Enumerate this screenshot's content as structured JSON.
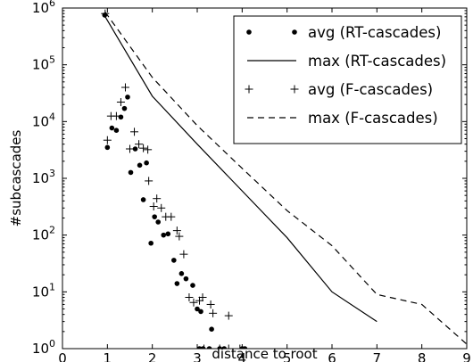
{
  "chart_data": {
    "type": "scatter",
    "xlabel": "distance to root",
    "ylabel": "#subcascades",
    "xlim": [
      0,
      9
    ],
    "ylim_exponent": [
      0,
      6
    ],
    "yscale": "log",
    "grid": false,
    "legend_position": "top-right",
    "x_ticks": [
      "0",
      "1",
      "2",
      "3",
      "4",
      "5",
      "6",
      "7",
      "8",
      "9"
    ],
    "y_ticks": [
      {
        "base": "10",
        "exp": "0"
      },
      {
        "base": "10",
        "exp": "1"
      },
      {
        "base": "10",
        "exp": "2"
      },
      {
        "base": "10",
        "exp": "3"
      },
      {
        "base": "10",
        "exp": "4"
      },
      {
        "base": "10",
        "exp": "5"
      },
      {
        "base": "10",
        "exp": "6"
      }
    ],
    "series": [
      {
        "name": "avg (RT-cascades)",
        "marker": "dot",
        "points": [
          [
            0.94,
            750000
          ],
          [
            1.0,
            3500
          ],
          [
            1.1,
            7700
          ],
          [
            1.2,
            7000
          ],
          [
            1.3,
            12000
          ],
          [
            1.38,
            17000
          ],
          [
            1.45,
            27000
          ],
          [
            1.52,
            1270
          ],
          [
            1.62,
            3300
          ],
          [
            1.72,
            1700
          ],
          [
            1.87,
            1870
          ],
          [
            1.8,
            420
          ],
          [
            1.97,
            72
          ],
          [
            2.05,
            210
          ],
          [
            2.13,
            170
          ],
          [
            2.25,
            100
          ],
          [
            2.35,
            105
          ],
          [
            2.48,
            36
          ],
          [
            2.55,
            14
          ],
          [
            2.65,
            21
          ],
          [
            2.75,
            17
          ],
          [
            2.9,
            13
          ],
          [
            3.0,
            5
          ],
          [
            3.08,
            4.5
          ],
          [
            3.32,
            2.2
          ],
          [
            3.05,
            1.0
          ],
          [
            3.13,
            1.0
          ],
          [
            3.27,
            1.0
          ],
          [
            3.5,
            1.0
          ],
          [
            3.6,
            1.0
          ],
          [
            4.0,
            1.0
          ],
          [
            4.06,
            1.0
          ]
        ]
      },
      {
        "name": "max (RT-cascades)",
        "line": "solid",
        "points": [
          [
            0.93,
            750000
          ],
          [
            2.0,
            28000
          ],
          [
            3.0,
            4000
          ],
          [
            4.0,
            600
          ],
          [
            5.0,
            90
          ],
          [
            6.0,
            10
          ],
          [
            7.0,
            3
          ]
        ]
      },
      {
        "name": "avg (F-cascades)",
        "marker": "plus",
        "points": [
          [
            0.95,
            800000
          ],
          [
            1.0,
            4700
          ],
          [
            1.08,
            12500
          ],
          [
            1.2,
            12500
          ],
          [
            1.3,
            22000
          ],
          [
            1.4,
            40000
          ],
          [
            1.5,
            3300
          ],
          [
            1.6,
            6600
          ],
          [
            1.7,
            4000
          ],
          [
            1.8,
            3400
          ],
          [
            1.9,
            3200
          ],
          [
            1.92,
            900
          ],
          [
            2.03,
            320
          ],
          [
            2.1,
            440
          ],
          [
            2.2,
            300
          ],
          [
            2.3,
            210
          ],
          [
            2.42,
            210
          ],
          [
            2.55,
            120
          ],
          [
            2.6,
            95
          ],
          [
            2.7,
            46
          ],
          [
            2.82,
            8
          ],
          [
            2.92,
            6.5
          ],
          [
            3.05,
            7
          ],
          [
            3.12,
            8
          ],
          [
            3.3,
            6
          ],
          [
            3.35,
            4.2
          ],
          [
            3.7,
            3.8
          ],
          [
            3.15,
            1.0
          ],
          [
            3.5,
            1.0
          ],
          [
            3.7,
            1.0
          ],
          [
            3.95,
            1.0
          ]
        ]
      },
      {
        "name": "max (F-cascades)",
        "line": "dashed",
        "points": [
          [
            0.95,
            850000
          ],
          [
            2.0,
            60000
          ],
          [
            3.0,
            8500
          ],
          [
            4.0,
            1500
          ],
          [
            5.0,
            270
          ],
          [
            6.0,
            65
          ],
          [
            7.0,
            9
          ],
          [
            8.0,
            6
          ],
          [
            9.0,
            1.2
          ]
        ]
      }
    ]
  }
}
